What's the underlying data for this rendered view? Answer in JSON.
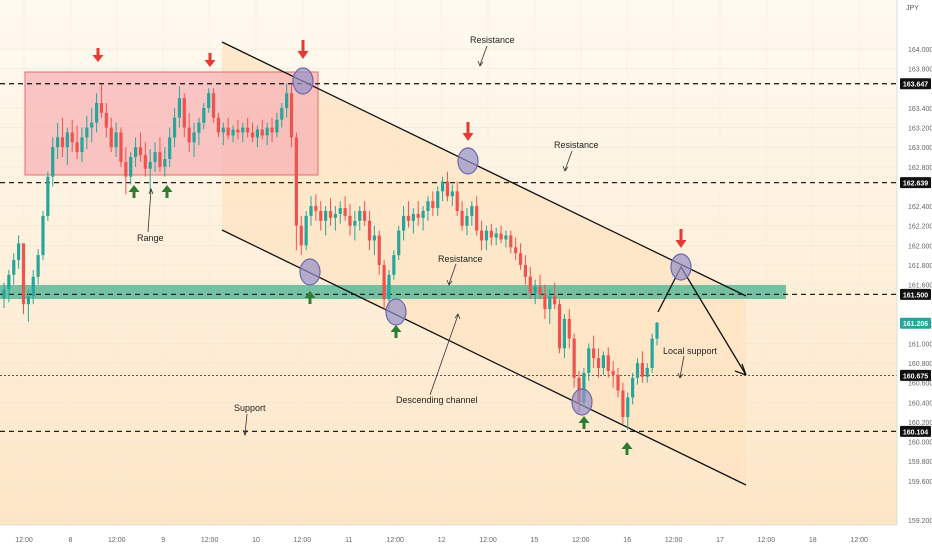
{
  "chart_data": {
    "type": "candlestick",
    "title": "",
    "currency": "JPY",
    "ylim": [
      159.15,
      164.5
    ],
    "y_ticks": [
      164.0,
      163.8,
      163.4,
      163.2,
      163.0,
      162.8,
      162.4,
      162.2,
      162.0,
      161.8,
      161.6,
      161.2,
      161.0,
      160.8,
      160.6,
      160.4,
      160.2,
      160.0,
      159.8,
      159.6,
      159.2
    ],
    "y_tick_labels": [
      "164.000",
      "163.800",
      "163.400",
      "163.200",
      "163.000",
      "162.800",
      "162.400",
      "162.200",
      "162.000",
      "161.800",
      "161.600",
      "161.200",
      "161.000",
      "160.800",
      "160.600",
      "160.400",
      "160.200",
      "160.000",
      "159.800",
      "159.600",
      "159.200"
    ],
    "x_labels": [
      "12:00",
      "8",
      "12:00",
      "9",
      "12:00",
      "10",
      "12:00",
      "11",
      "12:00",
      "12",
      "12:00",
      "15",
      "12:00",
      "16",
      "12:00",
      "17",
      "12:00",
      "18",
      "12:00"
    ],
    "x_range_bars": [
      0,
      190
    ],
    "price_levels": [
      {
        "price": 163.647,
        "label": "163.647"
      },
      {
        "price": 162.639,
        "label": "162.639"
      },
      {
        "price": 161.5,
        "label": "161.500"
      },
      {
        "price": 160.675,
        "label": "160.675"
      },
      {
        "price": 160.104,
        "label": "160.104"
      }
    ],
    "current_price_label": "161.206",
    "candles": [
      [
        161.46,
        161.62,
        161.36,
        161.55
      ],
      [
        161.55,
        161.75,
        161.42,
        161.7
      ],
      [
        161.7,
        161.92,
        161.6,
        161.85
      ],
      [
        161.85,
        162.1,
        161.76,
        162.02
      ],
      [
        162.02,
        161.98,
        161.3,
        161.4
      ],
      [
        161.4,
        161.55,
        161.22,
        161.48
      ],
      [
        161.48,
        161.75,
        161.4,
        161.68
      ],
      [
        161.68,
        161.96,
        161.6,
        161.9
      ],
      [
        161.9,
        162.35,
        161.85,
        162.3
      ],
      [
        162.3,
        162.75,
        162.25,
        162.7
      ],
      [
        162.7,
        163.1,
        162.6,
        163.0
      ],
      [
        163.0,
        163.25,
        162.88,
        163.1
      ],
      [
        163.1,
        163.3,
        162.9,
        163.0
      ],
      [
        163.0,
        163.2,
        162.82,
        163.15
      ],
      [
        163.15,
        163.28,
        162.95,
        163.05
      ],
      [
        163.05,
        163.22,
        162.88,
        162.95
      ],
      [
        162.95,
        163.2,
        162.85,
        163.1
      ],
      [
        163.1,
        163.32,
        162.98,
        163.2
      ],
      [
        163.2,
        163.4,
        163.05,
        163.25
      ],
      [
        163.25,
        163.55,
        163.15,
        163.45
      ],
      [
        163.45,
        163.64,
        163.3,
        163.35
      ],
      [
        163.35,
        163.45,
        163.1,
        163.2
      ],
      [
        163.2,
        163.3,
        162.95,
        163.0
      ],
      [
        163.0,
        163.25,
        162.9,
        163.15
      ],
      [
        163.15,
        163.2,
        162.8,
        162.85
      ],
      [
        162.85,
        163.0,
        162.52,
        162.7
      ],
      [
        162.7,
        162.95,
        162.62,
        162.9
      ],
      [
        162.9,
        163.1,
        162.8,
        163.0
      ],
      [
        163.0,
        163.15,
        162.85,
        162.92
      ],
      [
        162.92,
        163.05,
        162.7,
        162.78
      ],
      [
        162.78,
        162.98,
        162.55,
        162.85
      ],
      [
        162.85,
        163.05,
        162.75,
        162.95
      ],
      [
        162.95,
        163.1,
        162.75,
        162.8
      ],
      [
        162.8,
        163.0,
        162.7,
        162.88
      ],
      [
        162.88,
        163.2,
        162.8,
        163.1
      ],
      [
        163.1,
        163.4,
        163.0,
        163.3
      ],
      [
        163.3,
        163.62,
        163.2,
        163.5
      ],
      [
        163.5,
        163.55,
        163.1,
        163.2
      ],
      [
        163.2,
        163.35,
        162.95,
        163.05
      ],
      [
        163.05,
        163.25,
        162.9,
        163.15
      ],
      [
        163.15,
        163.3,
        163.02,
        163.25
      ],
      [
        163.25,
        163.45,
        163.18,
        163.4
      ],
      [
        163.4,
        163.6,
        163.35,
        163.55
      ],
      [
        163.55,
        163.6,
        163.25,
        163.3
      ],
      [
        163.3,
        163.35,
        163.1,
        163.15
      ],
      [
        163.15,
        163.25,
        163.02,
        163.2
      ],
      [
        163.2,
        163.3,
        163.08,
        163.12
      ],
      [
        163.12,
        163.22,
        163.05,
        163.18
      ],
      [
        163.18,
        163.28,
        163.08,
        163.15
      ],
      [
        163.15,
        163.25,
        163.05,
        163.2
      ],
      [
        163.2,
        163.3,
        163.1,
        163.15
      ],
      [
        163.15,
        163.25,
        163.05,
        163.1
      ],
      [
        163.1,
        163.22,
        163.0,
        163.18
      ],
      [
        163.18,
        163.28,
        163.08,
        163.12
      ],
      [
        163.12,
        163.25,
        163.02,
        163.2
      ],
      [
        163.2,
        163.3,
        163.05,
        163.15
      ],
      [
        163.15,
        163.35,
        163.1,
        163.28
      ],
      [
        163.28,
        163.45,
        163.2,
        163.4
      ],
      [
        163.4,
        163.65,
        163.3,
        163.55
      ],
      [
        163.55,
        163.64,
        163.0,
        163.1
      ],
      [
        163.1,
        163.15,
        161.95,
        162.2
      ],
      [
        162.2,
        162.3,
        161.9,
        162.0
      ],
      [
        162.0,
        162.35,
        161.95,
        162.3
      ],
      [
        162.3,
        162.5,
        162.2,
        162.4
      ],
      [
        162.4,
        162.52,
        162.25,
        162.35
      ],
      [
        162.35,
        162.45,
        162.15,
        162.25
      ],
      [
        162.25,
        162.4,
        162.1,
        162.35
      ],
      [
        162.35,
        162.48,
        162.2,
        162.28
      ],
      [
        162.28,
        162.4,
        162.15,
        162.32
      ],
      [
        162.32,
        162.45,
        162.22,
        162.38
      ],
      [
        162.38,
        162.5,
        162.25,
        162.3
      ],
      [
        162.3,
        162.42,
        162.1,
        162.2
      ],
      [
        162.2,
        162.35,
        162.05,
        162.25
      ],
      [
        162.25,
        162.4,
        162.15,
        162.35
      ],
      [
        162.35,
        162.45,
        162.2,
        162.25
      ],
      [
        162.25,
        162.35,
        161.95,
        162.05
      ],
      [
        162.05,
        162.2,
        161.9,
        162.1
      ],
      [
        162.1,
        162.15,
        161.7,
        161.8
      ],
      [
        161.8,
        161.85,
        161.35,
        161.45
      ],
      [
        161.45,
        161.75,
        161.35,
        161.7
      ],
      [
        161.7,
        161.95,
        161.65,
        161.9
      ],
      [
        161.9,
        162.2,
        161.85,
        162.15
      ],
      [
        162.15,
        162.4,
        162.05,
        162.3
      ],
      [
        162.3,
        162.45,
        162.18,
        162.25
      ],
      [
        162.25,
        162.38,
        162.12,
        162.32
      ],
      [
        162.32,
        162.45,
        162.2,
        162.28
      ],
      [
        162.28,
        162.4,
        162.15,
        162.35
      ],
      [
        162.35,
        162.5,
        162.25,
        162.45
      ],
      [
        162.45,
        162.55,
        162.3,
        162.38
      ],
      [
        162.38,
        162.6,
        162.3,
        162.55
      ],
      [
        162.55,
        162.7,
        162.45,
        162.65
      ],
      [
        162.65,
        162.75,
        162.45,
        162.5
      ],
      [
        162.5,
        162.62,
        162.4,
        162.55
      ],
      [
        162.55,
        162.65,
        162.3,
        162.35
      ],
      [
        162.35,
        162.45,
        162.15,
        162.2
      ],
      [
        162.2,
        162.38,
        162.1,
        162.3
      ],
      [
        162.3,
        162.45,
        162.2,
        162.4
      ],
      [
        162.4,
        162.5,
        162.1,
        162.15
      ],
      [
        162.15,
        162.25,
        161.95,
        162.05
      ],
      [
        162.05,
        162.2,
        161.95,
        162.15
      ],
      [
        162.15,
        162.22,
        162.0,
        162.08
      ],
      [
        162.08,
        162.18,
        162.0,
        162.12
      ],
      [
        162.12,
        162.2,
        162.02,
        162.06
      ],
      [
        162.06,
        162.15,
        161.98,
        162.1
      ],
      [
        162.1,
        162.15,
        161.92,
        161.98
      ],
      [
        161.98,
        162.08,
        161.85,
        161.92
      ],
      [
        161.92,
        162.02,
        161.75,
        161.8
      ],
      [
        161.8,
        161.9,
        161.6,
        161.68
      ],
      [
        161.68,
        161.78,
        161.45,
        161.52
      ],
      [
        161.52,
        161.65,
        161.4,
        161.58
      ],
      [
        161.58,
        161.7,
        161.45,
        161.5
      ],
      [
        161.5,
        161.6,
        161.25,
        161.35
      ],
      [
        161.35,
        161.55,
        161.2,
        161.48
      ],
      [
        161.48,
        161.62,
        161.35,
        161.4
      ],
      [
        161.4,
        161.45,
        160.9,
        160.95
      ],
      [
        160.95,
        161.3,
        160.85,
        161.25
      ],
      [
        161.25,
        161.35,
        160.95,
        161.05
      ],
      [
        161.05,
        161.1,
        160.55,
        160.65
      ],
      [
        160.65,
        160.72,
        160.3,
        160.4
      ],
      [
        160.4,
        160.75,
        160.35,
        160.7
      ],
      [
        160.7,
        161.0,
        160.62,
        160.95
      ],
      [
        160.95,
        161.08,
        160.75,
        160.85
      ],
      [
        160.85,
        160.95,
        160.65,
        160.75
      ],
      [
        160.75,
        160.92,
        160.68,
        160.88
      ],
      [
        160.88,
        160.96,
        160.65,
        160.72
      ],
      [
        160.72,
        160.82,
        160.55,
        160.68
      ],
      [
        160.68,
        160.75,
        160.45,
        160.52
      ],
      [
        160.52,
        160.6,
        160.18,
        160.25
      ],
      [
        160.25,
        160.5,
        160.12,
        160.45
      ],
      [
        160.45,
        160.7,
        160.38,
        160.65
      ],
      [
        160.65,
        160.85,
        160.58,
        160.8
      ],
      [
        160.8,
        160.92,
        160.6,
        160.66
      ],
      [
        160.66,
        160.8,
        160.6,
        160.75
      ],
      [
        160.75,
        161.1,
        160.7,
        161.05
      ],
      [
        161.05,
        161.22,
        160.98,
        161.21
      ]
    ]
  },
  "legend": {
    "currency": "JPY"
  },
  "price_tags": [
    {
      "label": "163.647"
    },
    {
      "label": "162.639"
    },
    {
      "label": "161.500"
    },
    {
      "label": "160.675"
    },
    {
      "label": "160.104"
    },
    {
      "label": "161.206"
    }
  ],
  "annotations": {
    "resistance_1": "Resistance",
    "resistance_2": "Resistance",
    "resistance_3": "Resistance",
    "range": "Range",
    "support": "Support",
    "descending_channel": "Descending channel",
    "local_support": "Local support"
  },
  "colors": {
    "up": "#26a69a",
    "down": "#ef5350",
    "range_box": "#f7b8b8",
    "support_zone": "#5fb89a",
    "channel_fill": "#fde9cf",
    "circle": "#8f8cc4",
    "arrow_down": "#e53935",
    "arrow_up": "#2e7d32"
  }
}
